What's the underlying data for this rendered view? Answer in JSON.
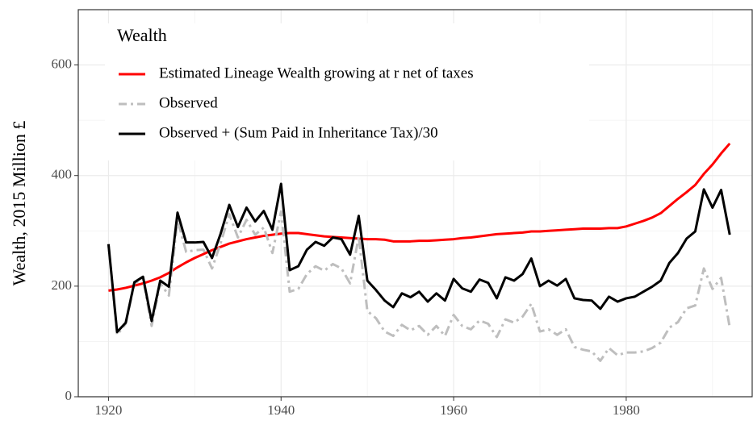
{
  "chart_data": {
    "type": "line",
    "y_label": "Wealth, 2015 Million £",
    "legend_title": "Wealth",
    "legend": "top-left",
    "grid": true,
    "x": [
      1920,
      1921,
      1922,
      1923,
      1924,
      1925,
      1926,
      1927,
      1928,
      1929,
      1930,
      1931,
      1932,
      1933,
      1934,
      1935,
      1936,
      1937,
      1938,
      1939,
      1940,
      1941,
      1942,
      1943,
      1944,
      1945,
      1946,
      1947,
      1948,
      1949,
      1950,
      1951,
      1952,
      1953,
      1954,
      1955,
      1956,
      1957,
      1958,
      1959,
      1960,
      1961,
      1962,
      1963,
      1964,
      1965,
      1966,
      1967,
      1968,
      1969,
      1970,
      1971,
      1972,
      1973,
      1974,
      1975,
      1976,
      1977,
      1978,
      1979,
      1980,
      1981,
      1982,
      1983,
      1984,
      1985,
      1986,
      1987,
      1988,
      1989,
      1990,
      1991,
      1992
    ],
    "xlim": [
      1916.5,
      1994.6
    ],
    "xticks": [
      1920,
      1940,
      1960,
      1980
    ],
    "minor_xticks": [
      1930,
      1950,
      1970,
      1990
    ],
    "ylim": [
      0,
      700
    ],
    "yticks": [
      0,
      200,
      400,
      600
    ],
    "minor_yticks": [
      100,
      300,
      500
    ],
    "series": [
      {
        "name": "Estimated Lineage Wealth growing at r net of taxes",
        "color": "#ff0000",
        "dash": "solid",
        "values": [
          192,
          194,
          197,
          201,
          205,
          210,
          216,
          224,
          234,
          243,
          251,
          258,
          265,
          271,
          277,
          281,
          285,
          288,
          291,
          293,
          295,
          296,
          296,
          294,
          292,
          290,
          289,
          288,
          287,
          286,
          285,
          285,
          284,
          281,
          281,
          281,
          282,
          282,
          283,
          284,
          285,
          287,
          288,
          290,
          292,
          294,
          295,
          296,
          297,
          299,
          299,
          300,
          301,
          302,
          303,
          304,
          304,
          304,
          305,
          305,
          308,
          313,
          318,
          324,
          332,
          345,
          358,
          370,
          383,
          403,
          420,
          440,
          458
        ]
      },
      {
        "name": "Observed",
        "color": "#bebebe",
        "dash": "dashdot",
        "values": [
          276,
          112,
          132,
          205,
          214,
          128,
          205,
          183,
          320,
          262,
          265,
          266,
          232,
          278,
          330,
          288,
          320,
          293,
          306,
          260,
          335,
          190,
          195,
          222,
          236,
          228,
          240,
          232,
          205,
          290,
          155,
          142,
          118,
          110,
          130,
          120,
          128,
          112,
          128,
          110,
          148,
          128,
          122,
          138,
          132,
          108,
          140,
          134,
          145,
          168,
          118,
          122,
          112,
          122,
          90,
          85,
          82,
          65,
          88,
          75,
          80,
          80,
          82,
          88,
          98,
          125,
          135,
          160,
          165,
          232,
          195,
          215,
          125
        ]
      },
      {
        "name": "Observed + (Sum Paid in Inheritance Tax)/30",
        "color": "#000000",
        "dash": "solid",
        "values": [
          276,
          117,
          134,
          207,
          217,
          137,
          210,
          199,
          333,
          279,
          279,
          280,
          251,
          295,
          347,
          307,
          342,
          317,
          336,
          302,
          385,
          229,
          236,
          266,
          280,
          273,
          288,
          285,
          257,
          327,
          210,
          193,
          174,
          162,
          187,
          180,
          190,
          172,
          187,
          174,
          213,
          196,
          190,
          212,
          206,
          178,
          216,
          210,
          222,
          250,
          200,
          210,
          201,
          213,
          178,
          175,
          174,
          159,
          181,
          172,
          178,
          181,
          190,
          199,
          210,
          242,
          260,
          286,
          299,
          375,
          342,
          374,
          293
        ]
      }
    ]
  }
}
